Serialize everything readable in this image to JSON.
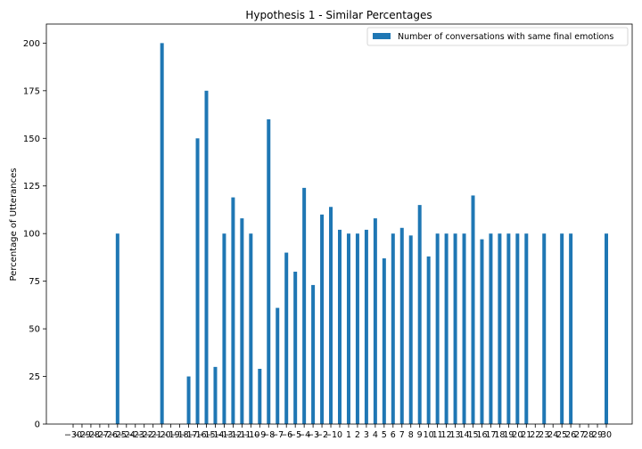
{
  "chart_data": {
    "type": "bar",
    "title": "Hypothesis 1 - Similar Percentages",
    "xlabel": "",
    "ylabel": "Percentage of Utterances",
    "ylim": [
      0,
      210
    ],
    "yticks": [
      0,
      25,
      50,
      75,
      100,
      125,
      150,
      175,
      200
    ],
    "grid": false,
    "legend_position": "top-right",
    "categories": [
      -30,
      -29,
      -28,
      -27,
      -26,
      -25,
      -24,
      -23,
      -22,
      -21,
      -20,
      -19,
      -18,
      -17,
      -16,
      -15,
      -14,
      -13,
      -12,
      -11,
      -10,
      -9,
      -8,
      -7,
      -6,
      -5,
      -4,
      -3,
      -2,
      -1,
      0,
      1,
      2,
      3,
      4,
      5,
      6,
      7,
      8,
      9,
      10,
      11,
      12,
      13,
      14,
      15,
      16,
      17,
      18,
      19,
      20,
      21,
      22,
      23,
      24,
      25,
      26,
      27,
      28,
      29,
      30
    ],
    "series": [
      {
        "name": "Number of conversations with same final emotions",
        "color": "#1f77b4",
        "values": [
          0,
          0,
          0,
          0,
          0,
          100,
          0,
          0,
          0,
          0,
          200,
          0,
          0,
          25,
          150,
          175,
          30,
          100,
          119,
          108,
          100,
          29,
          160,
          61,
          90,
          80,
          124,
          73,
          110,
          114,
          102,
          100,
          100,
          102,
          108,
          87,
          100,
          103,
          99,
          115,
          88,
          100,
          100,
          100,
          100,
          120,
          97,
          100,
          100,
          100,
          100,
          100,
          0,
          100,
          0,
          100,
          100,
          0,
          0,
          0,
          100
        ]
      }
    ]
  }
}
